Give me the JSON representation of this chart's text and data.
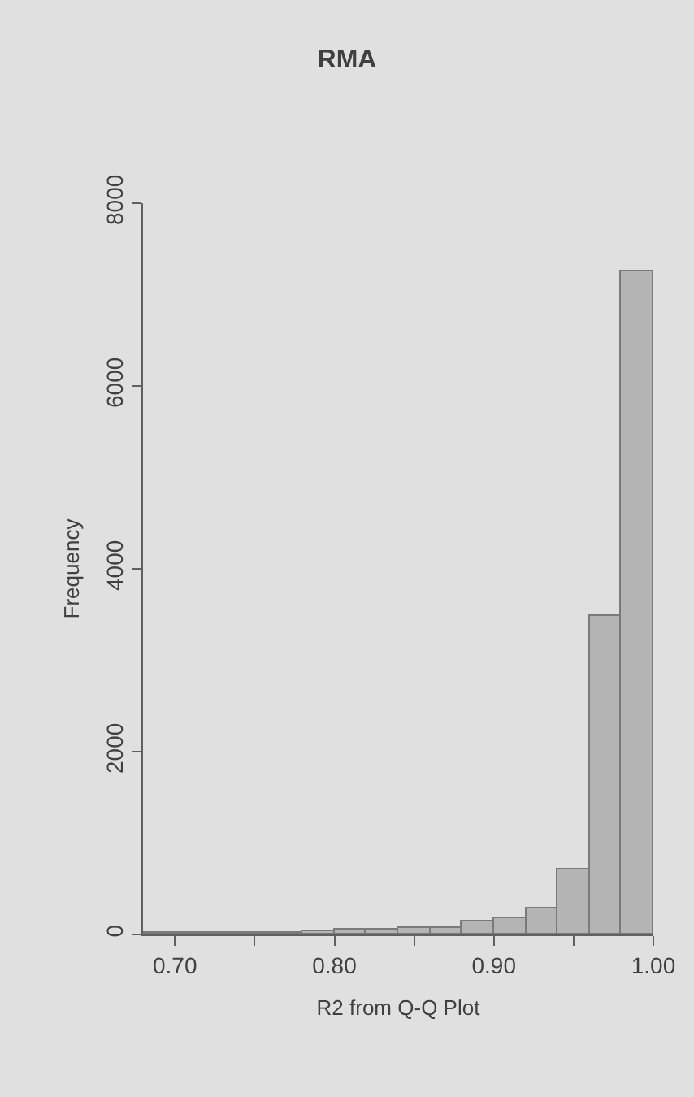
{
  "chart_data": {
    "type": "histogram",
    "title": "RMA",
    "xlabel": "R2 from Q-Q Plot",
    "ylabel": "Frequency",
    "bins": [
      0.68,
      0.7,
      0.72,
      0.74,
      0.76,
      0.78,
      0.8,
      0.82,
      0.84,
      0.86,
      0.88,
      0.9,
      0.92,
      0.94,
      0.96,
      0.98,
      1.0
    ],
    "values": [
      10,
      10,
      20,
      20,
      20,
      40,
      50,
      60,
      70,
      80,
      140,
      170,
      290,
      710,
      3480,
      7250
    ],
    "color": "#b4b4b4",
    "xlim": [
      0.68,
      1.0
    ],
    "xticks": [
      {
        "value": 0.7,
        "label": "0.70"
      },
      {
        "value": 0.75,
        "label": null
      },
      {
        "value": 0.8,
        "label": "0.80"
      },
      {
        "value": 0.85,
        "label": null
      },
      {
        "value": 0.9,
        "label": "0.90"
      },
      {
        "value": 0.95,
        "label": null
      },
      {
        "value": 1.0,
        "label": "1.00"
      }
    ],
    "ylim": [
      0,
      8000
    ],
    "yticks": [
      0,
      2000,
      4000,
      6000,
      8000
    ],
    "grid": false,
    "legend": false
  }
}
